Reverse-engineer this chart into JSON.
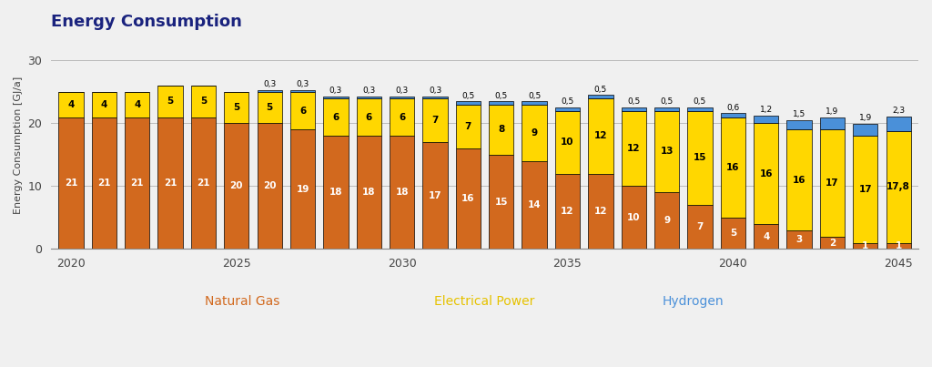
{
  "title": "Energy Consumption",
  "ylabel": "Energy Consumption [GJ/a]",
  "years": [
    2020,
    2021,
    2022,
    2023,
    2024,
    2025,
    2026,
    2027,
    2028,
    2029,
    2030,
    2031,
    2032,
    2033,
    2034,
    2035,
    2036,
    2037,
    2038,
    2039,
    2040,
    2041,
    2042,
    2043,
    2044,
    2045
  ],
  "natural_gas": [
    21,
    21,
    21,
    21,
    21,
    20,
    20,
    19,
    18,
    18,
    18,
    17,
    16,
    15,
    14,
    12,
    12,
    10,
    9,
    7,
    5,
    4,
    3,
    2,
    1,
    1
  ],
  "electrical_power": [
    4,
    4,
    4,
    5,
    5,
    5,
    5,
    6,
    6,
    6,
    6,
    7,
    7,
    8,
    9,
    10,
    12,
    12,
    13,
    15,
    16,
    16,
    16,
    17,
    17,
    17.8
  ],
  "hydrogen": [
    0,
    0,
    0,
    0,
    0,
    0,
    0.3,
    0.3,
    0.3,
    0.3,
    0.3,
    0.3,
    0.5,
    0.5,
    0.5,
    0.5,
    0.5,
    0.5,
    0.5,
    0.5,
    0.6,
    1.2,
    1.5,
    1.9,
    1.9,
    2.3
  ],
  "ng_labels": [
    "21",
    "21",
    "21",
    "21",
    "21",
    "20",
    "20",
    "19",
    "18",
    "18",
    "18",
    "17",
    "16",
    "15",
    "14",
    "12",
    "12",
    "10",
    "9",
    "7",
    "5",
    "4",
    "3",
    "2",
    "1",
    "1"
  ],
  "ep_labels": [
    "4",
    "4",
    "4",
    "5",
    "5",
    "5",
    "5",
    "6",
    "6",
    "6",
    "6",
    "7",
    "7",
    "8",
    "9",
    "10",
    "12",
    "12",
    "13",
    "15",
    "16",
    "16",
    "16",
    "17",
    "17",
    "17,8"
  ],
  "h2_labels": [
    "",
    "",
    "",
    "",
    "",
    "",
    "0,3",
    "0,3",
    "0,3",
    "0,3",
    "0,3",
    "0,3",
    "0,5",
    "0,5",
    "0,5",
    "0,5",
    "0,5",
    "0,5",
    "0,5",
    "0,5",
    "0,6",
    "1,2",
    "1,5",
    "1,9",
    "1,9",
    "2,3"
  ],
  "color_ng": "#d2691e",
  "color_ep": "#ffd700",
  "color_h2": "#4a90d9",
  "color_outline": "#555555",
  "ylim": [
    0,
    33
  ],
  "yticks": [
    0,
    10,
    20,
    30
  ],
  "background_color": "#f0f0f0",
  "plot_bg_color": "#f0f0f0",
  "title_color": "#1a237e",
  "legend_ng_color": "#d2691e",
  "legend_ep_color": "#e6c200",
  "legend_h2_color": "#4a90d9"
}
